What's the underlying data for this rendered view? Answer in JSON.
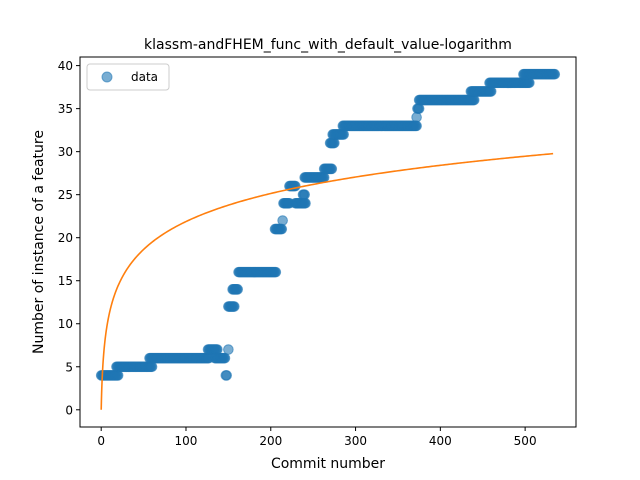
{
  "chart_data": {
    "type": "scatter",
    "title": "klassm-andFHEM_func_with_default_value-logarithm",
    "xlabel": "Commit number",
    "ylabel": "Number of instance of a feature",
    "xlim": [
      -25,
      560
    ],
    "ylim": [
      -2,
      41
    ],
    "xticks": [
      0,
      100,
      200,
      300,
      400,
      500
    ],
    "yticks": [
      0,
      5,
      10,
      15,
      20,
      25,
      30,
      35,
      40
    ],
    "grid": false,
    "legend": {
      "placement": "top-left",
      "entries": [
        "data"
      ]
    },
    "colors": {
      "data": "#1f77b4",
      "fit": "#ff7f0e"
    },
    "series": [
      {
        "name": "data",
        "kind": "scatter",
        "segments": [
          {
            "x0": 0,
            "x1": 20,
            "y": 4
          },
          {
            "x0": 18,
            "x1": 60,
            "y": 5
          },
          {
            "x0": 57,
            "x1": 127,
            "y": 6
          },
          {
            "x0": 126,
            "x1": 137,
            "y": 7
          },
          {
            "x0": 134,
            "x1": 146,
            "y": 6
          },
          {
            "x0": 147,
            "x1": 148,
            "y": 4
          },
          {
            "x0": 150,
            "x1": 150,
            "y": 7
          },
          {
            "x0": 150,
            "x1": 157,
            "y": 12
          },
          {
            "x0": 155,
            "x1": 161,
            "y": 14
          },
          {
            "x0": 162,
            "x1": 206,
            "y": 16
          },
          {
            "x0": 205,
            "x1": 213,
            "y": 21
          },
          {
            "x0": 214,
            "x1": 214,
            "y": 22
          },
          {
            "x0": 215,
            "x1": 222,
            "y": 24
          },
          {
            "x0": 222,
            "x1": 229,
            "y": 26
          },
          {
            "x0": 229,
            "x1": 241,
            "y": 24
          },
          {
            "x0": 238,
            "x1": 240,
            "y": 25
          },
          {
            "x0": 240,
            "x1": 263,
            "y": 27
          },
          {
            "x0": 263,
            "x1": 272,
            "y": 28
          },
          {
            "x0": 270,
            "x1": 275,
            "y": 31
          },
          {
            "x0": 273,
            "x1": 286,
            "y": 32
          },
          {
            "x0": 285,
            "x1": 372,
            "y": 33
          },
          {
            "x0": 372,
            "x1": 372,
            "y": 34
          },
          {
            "x0": 373,
            "x1": 375,
            "y": 35
          },
          {
            "x0": 375,
            "x1": 440,
            "y": 36
          },
          {
            "x0": 436,
            "x1": 460,
            "y": 37
          },
          {
            "x0": 458,
            "x1": 505,
            "y": 38
          },
          {
            "x0": 498,
            "x1": 535,
            "y": 39
          }
        ]
      },
      {
        "name": "",
        "kind": "line",
        "formula": "y = 4.74 * ln(x + 1)",
        "x_range": [
          0,
          533
        ]
      }
    ]
  }
}
